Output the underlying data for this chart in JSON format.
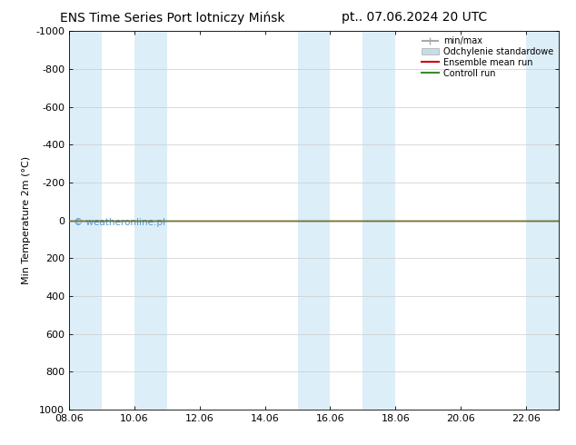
{
  "title_left": "ENS Time Series Port lotniczy Mińsk",
  "title_right": "pt.. 07.06.2024 20 UTC",
  "ylabel": "Min Temperature 2m (°C)",
  "watermark": "© weatheronline.pl",
  "xlim_start": 8.06,
  "xlim_end": 23.06,
  "ylim_top": -1000,
  "ylim_bottom": 1000,
  "yticks": [
    -1000,
    -800,
    -600,
    -400,
    -200,
    0,
    200,
    400,
    600,
    800,
    1000
  ],
  "xtick_labels": [
    "08.06",
    "10.06",
    "12.06",
    "14.06",
    "16.06",
    "18.06",
    "20.06",
    "22.06"
  ],
  "xtick_positions": [
    8.06,
    10.06,
    12.06,
    14.06,
    16.06,
    18.06,
    20.06,
    22.06
  ],
  "shaded_bands": [
    [
      8.06,
      9.06
    ],
    [
      10.06,
      11.06
    ],
    [
      15.06,
      16.06
    ],
    [
      17.06,
      18.06
    ],
    [
      22.06,
      23.06
    ]
  ],
  "band_color": "#dceef8",
  "line_color_control": "#3a8c2a",
  "line_color_ensemble": "#cc0000",
  "legend_minmax_color": "#aaaaaa",
  "legend_std_color": "#c8dce8",
  "background_color": "#ffffff",
  "grid_color": "#cccccc",
  "title_fontsize": 10,
  "axis_fontsize": 8,
  "tick_fontsize": 8,
  "watermark_color": "#5599cc"
}
